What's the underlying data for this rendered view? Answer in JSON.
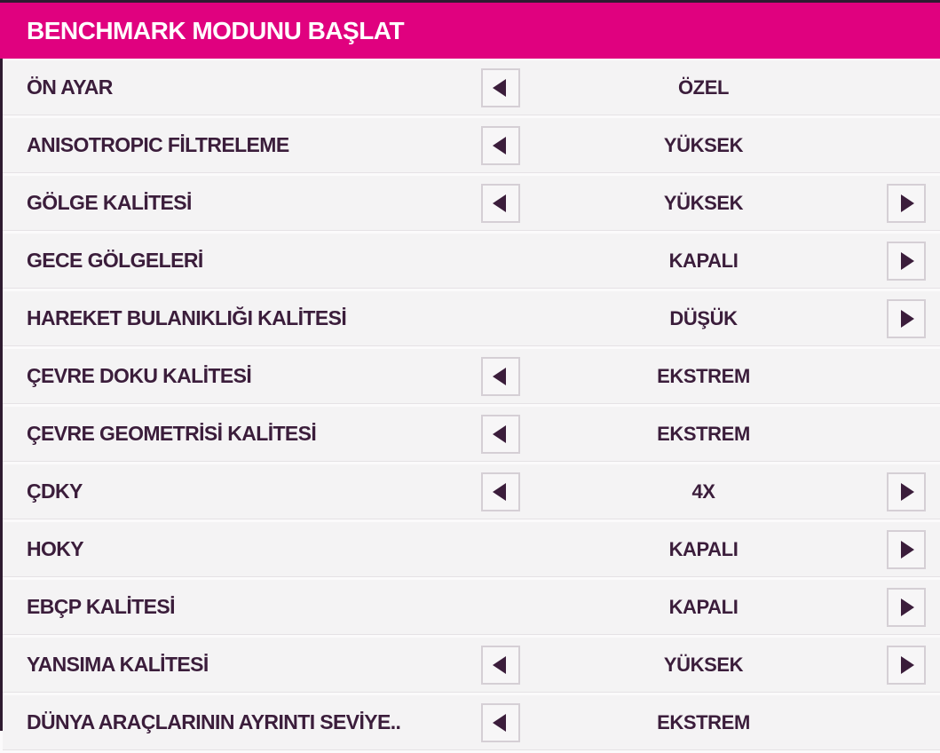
{
  "header": {
    "title": "BENCHMARK MODUNU BAŞLAT"
  },
  "settings": {
    "rows": [
      {
        "label": "ÖN AYAR",
        "value": "ÖZEL",
        "has_left_arrow": true,
        "has_right_arrow": false
      },
      {
        "label": "ANISOTROPIC FİLTRELEME",
        "value": "YÜKSEK",
        "has_left_arrow": true,
        "has_right_arrow": false
      },
      {
        "label": "GÖLGE KALİTESİ",
        "value": "YÜKSEK",
        "has_left_arrow": true,
        "has_right_arrow": true
      },
      {
        "label": "GECE GÖLGELERİ",
        "value": "KAPALI",
        "has_left_arrow": false,
        "has_right_arrow": true
      },
      {
        "label": "HAREKET BULANIKLIĞI KALİTESİ",
        "value": "DÜŞÜK",
        "has_left_arrow": false,
        "has_right_arrow": true
      },
      {
        "label": "ÇEVRE DOKU KALİTESİ",
        "value": "EKSTREM",
        "has_left_arrow": true,
        "has_right_arrow": false
      },
      {
        "label": "ÇEVRE GEOMETRİSİ KALİTESİ",
        "value": "EKSTREM",
        "has_left_arrow": true,
        "has_right_arrow": false
      },
      {
        "label": "ÇDKY",
        "value": "4X",
        "has_left_arrow": true,
        "has_right_arrow": true
      },
      {
        "label": "HOKY",
        "value": "KAPALI",
        "has_left_arrow": false,
        "has_right_arrow": true
      },
      {
        "label": "EBÇP KALİTESİ",
        "value": "KAPALI",
        "has_left_arrow": false,
        "has_right_arrow": true
      },
      {
        "label": "YANSIMA KALİTESİ",
        "value": "YÜKSEK",
        "has_left_arrow": true,
        "has_right_arrow": true
      },
      {
        "label": "DÜNYA ARAÇLARININ AYRINTI SEVİYE..",
        "value": "EKSTREM",
        "has_left_arrow": true,
        "has_right_arrow": false
      }
    ]
  },
  "icons": {
    "decrease_arrow": "◀",
    "increase_arrow": "▶"
  },
  "colors": {
    "accent_magenta": "#E0017F",
    "text_dark_purple": "#3B1D3B",
    "row_background": "#F4F3F4",
    "edge_strip": "#2E1B30",
    "button_border": "#D5CFD5"
  }
}
